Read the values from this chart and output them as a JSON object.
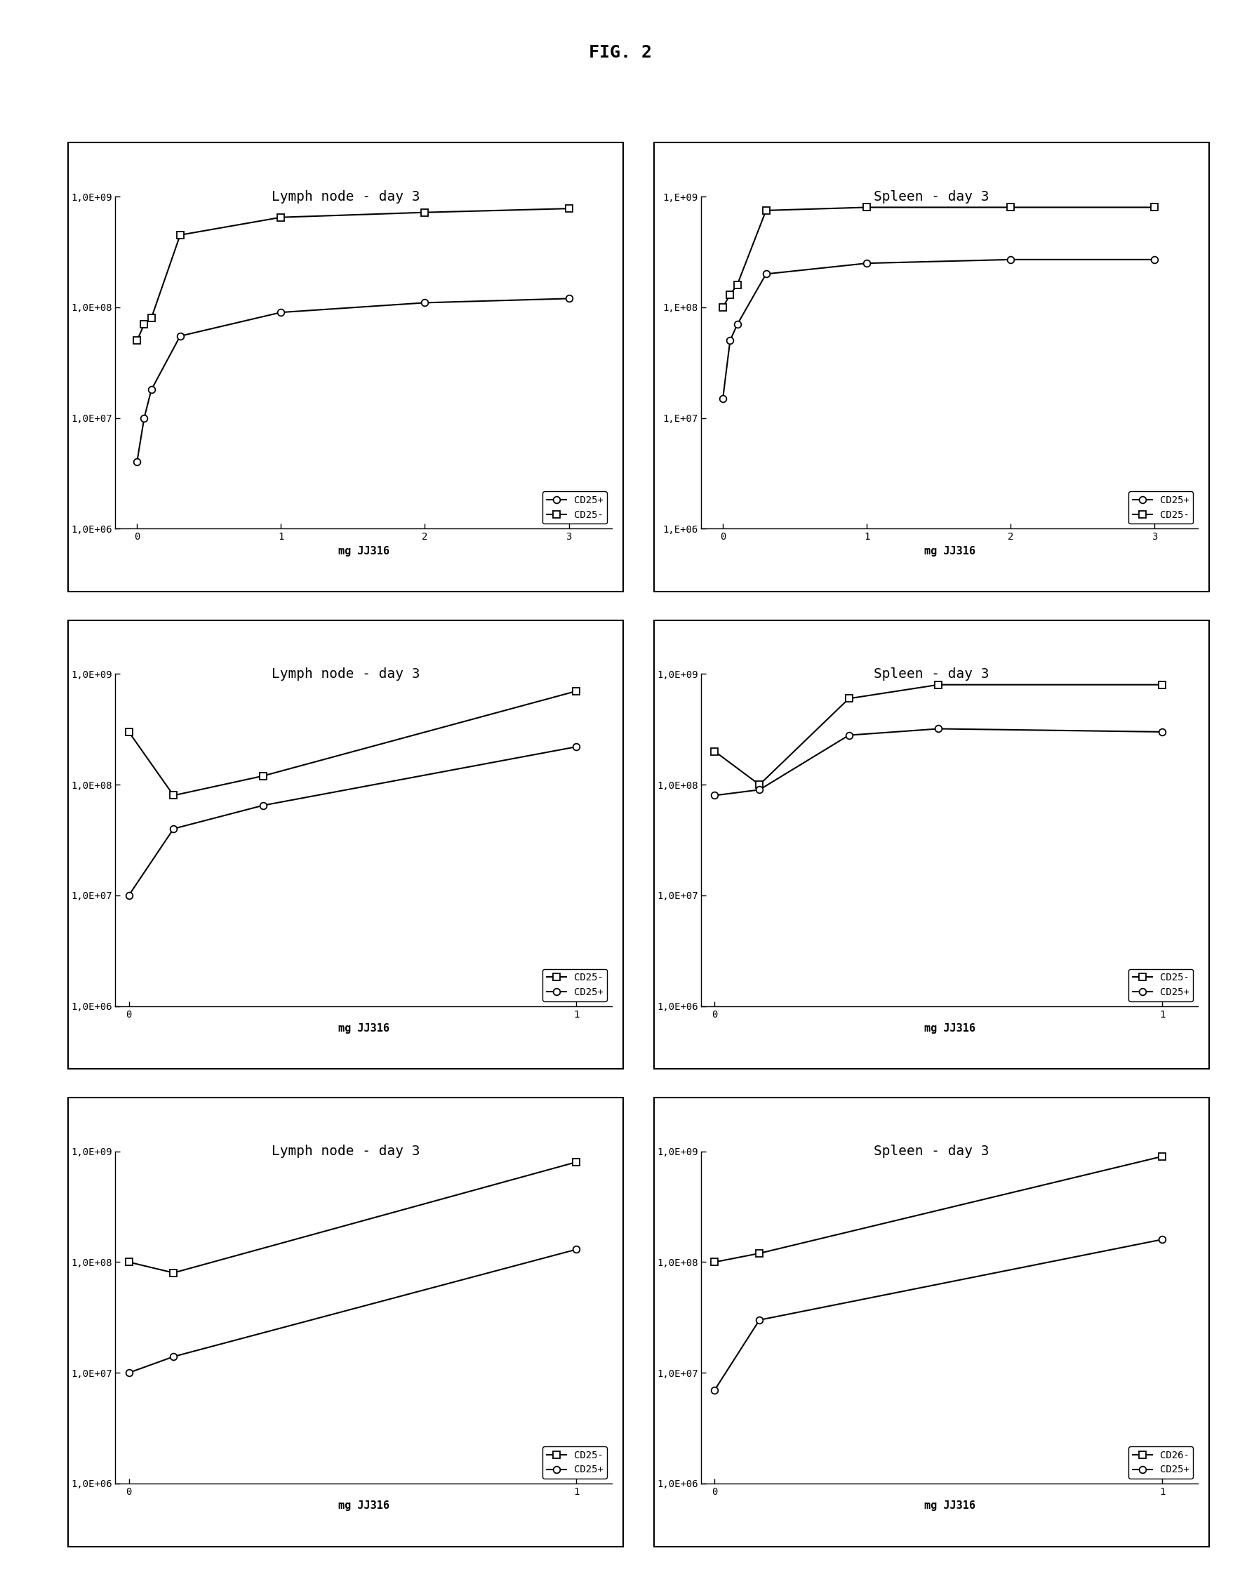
{
  "fig_title": "FIG. 2",
  "subplots": [
    {
      "title": "Lymph node - day 3",
      "xlabel": "mg JJ316",
      "ylim_log": [
        1000000.0,
        1000000000.0
      ],
      "xlim": [
        -0.15,
        3.3
      ],
      "xticks": [
        0,
        1,
        2,
        3
      ],
      "xtick_labels": [
        "0",
        "1",
        "2",
        "3"
      ],
      "ytick_vals": [
        1000000.0,
        10000000.0,
        100000000.0,
        1000000000.0
      ],
      "ytick_labels": [
        "1,0E+06",
        "1,0E+07",
        "1,0E+08",
        "1,0E+09"
      ],
      "series": [
        {
          "label": "CD25+",
          "marker": "o",
          "x": [
            0.0,
            0.05,
            0.1,
            0.3,
            1.0,
            2.0,
            3.0
          ],
          "y": [
            4000000.0,
            10000000.0,
            18000000.0,
            55000000.0,
            90000000.0,
            110000000.0,
            120000000.0
          ]
        },
        {
          "label": "CD25-",
          "marker": "s",
          "x": [
            0.0,
            0.05,
            0.1,
            0.3,
            1.0,
            2.0,
            3.0
          ],
          "y": [
            50000000.0,
            70000000.0,
            80000000.0,
            450000000.0,
            650000000.0,
            720000000.0,
            780000000.0
          ]
        }
      ],
      "legend_order": [
        0,
        1
      ]
    },
    {
      "title": "Spleen - day 3",
      "xlabel": "mg JJ316",
      "ylim_log": [
        1000000.0,
        1000000000.0
      ],
      "xlim": [
        -0.15,
        3.3
      ],
      "xticks": [
        0,
        1,
        2,
        3
      ],
      "xtick_labels": [
        "0",
        "1",
        "2",
        "3"
      ],
      "ytick_vals": [
        1000000.0,
        10000000.0,
        100000000.0,
        1000000000.0
      ],
      "ytick_labels": [
        "1,E+06",
        "1,E+07",
        "1,E+08",
        "1,E+09"
      ],
      "series": [
        {
          "label": "CD25+",
          "marker": "o",
          "x": [
            0.0,
            0.05,
            0.1,
            0.3,
            1.0,
            2.0,
            3.0
          ],
          "y": [
            15000000.0,
            50000000.0,
            70000000.0,
            200000000.0,
            250000000.0,
            270000000.0,
            270000000.0
          ]
        },
        {
          "label": "CD25-",
          "marker": "s",
          "x": [
            0.0,
            0.05,
            0.1,
            0.3,
            1.0,
            2.0,
            3.0
          ],
          "y": [
            100000000.0,
            130000000.0,
            160000000.0,
            750000000.0,
            800000000.0,
            800000000.0,
            800000000.0
          ]
        }
      ],
      "legend_order": [
        0,
        1
      ]
    },
    {
      "title": "Lymph node - day 3",
      "xlabel": "mg JJ316",
      "ylim_log": [
        1000000.0,
        1000000000.0
      ],
      "xlim": [
        -0.03,
        1.08
      ],
      "xticks": [
        0,
        1
      ],
      "xtick_labels": [
        "0",
        "1"
      ],
      "ytick_vals": [
        1000000.0,
        10000000.0,
        100000000.0,
        1000000000.0
      ],
      "ytick_labels": [
        "1,0E+06",
        "1,0E+07",
        "1,0E+08",
        "1,0E+09"
      ],
      "series": [
        {
          "label": "CD25-",
          "marker": "s",
          "x": [
            0.0,
            0.1,
            0.3,
            1.0
          ],
          "y": [
            300000000.0,
            80000000.0,
            120000000.0,
            700000000.0
          ]
        },
        {
          "label": "CD25+",
          "marker": "o",
          "x": [
            0.0,
            0.1,
            0.3,
            1.0
          ],
          "y": [
            10000000.0,
            40000000.0,
            65000000.0,
            220000000.0
          ]
        }
      ],
      "legend_order": [
        0,
        1
      ]
    },
    {
      "title": "Spleen - day 3",
      "xlabel": "mg JJ316",
      "ylim_log": [
        1000000.0,
        1000000000.0
      ],
      "xlim": [
        -0.03,
        1.08
      ],
      "xticks": [
        0,
        1
      ],
      "xtick_labels": [
        "0",
        "1"
      ],
      "ytick_vals": [
        1000000.0,
        10000000.0,
        100000000.0,
        1000000000.0
      ],
      "ytick_labels": [
        "1,0E+06",
        "1,0E+07",
        "1,0E+08",
        "1,0E+09"
      ],
      "series": [
        {
          "label": "CD25-",
          "marker": "s",
          "x": [
            0.0,
            0.1,
            0.3,
            0.5,
            1.0
          ],
          "y": [
            200000000.0,
            100000000.0,
            600000000.0,
            800000000.0,
            800000000.0
          ]
        },
        {
          "label": "CD25+",
          "marker": "o",
          "x": [
            0.0,
            0.1,
            0.3,
            0.5,
            1.0
          ],
          "y": [
            80000000.0,
            90000000.0,
            280000000.0,
            320000000.0,
            300000000.0
          ]
        }
      ],
      "legend_order": [
        0,
        1
      ]
    },
    {
      "title": "Lymph node - day 3",
      "xlabel": "mg JJ316",
      "ylim_log": [
        1000000.0,
        1000000000.0
      ],
      "xlim": [
        -0.03,
        1.08
      ],
      "xticks": [
        0,
        1
      ],
      "xtick_labels": [
        "0",
        "1"
      ],
      "ytick_vals": [
        1000000.0,
        10000000.0,
        100000000.0,
        1000000000.0
      ],
      "ytick_labels": [
        "1,0E+06",
        "1,0E+07",
        "1,0E+08",
        "1,0E+09"
      ],
      "series": [
        {
          "label": "CD25-",
          "marker": "s",
          "x": [
            0.0,
            0.1,
            1.0
          ],
          "y": [
            100000000.0,
            80000000.0,
            800000000.0
          ]
        },
        {
          "label": "CD25+",
          "marker": "o",
          "x": [
            0.0,
            0.1,
            1.0
          ],
          "y": [
            10000000.0,
            14000000.0,
            130000000.0
          ]
        }
      ],
      "legend_order": [
        0,
        1
      ]
    },
    {
      "title": "Spleen - day 3",
      "xlabel": "mg JJ316",
      "ylim_log": [
        1000000.0,
        1000000000.0
      ],
      "xlim": [
        -0.03,
        1.08
      ],
      "xticks": [
        0,
        1
      ],
      "xtick_labels": [
        "0",
        "1"
      ],
      "ytick_vals": [
        1000000.0,
        10000000.0,
        100000000.0,
        1000000000.0
      ],
      "ytick_labels": [
        "1,0E+06",
        "1,0E+07",
        "1,0E+08",
        "1,0E+09"
      ],
      "series": [
        {
          "label": "CD26-",
          "marker": "s",
          "x": [
            0.0,
            0.1,
            1.0
          ],
          "y": [
            100000000.0,
            120000000.0,
            900000000.0
          ]
        },
        {
          "label": "CD25+",
          "marker": "o",
          "x": [
            0.0,
            0.1,
            1.0
          ],
          "y": [
            7000000.0,
            30000000.0,
            160000000.0
          ]
        }
      ],
      "legend_order": [
        0,
        1
      ]
    }
  ],
  "line_color": "#000000",
  "marker_size": 7,
  "title_fontsize": 14,
  "tick_fontsize": 10,
  "label_fontsize": 11,
  "legend_fontsize": 10,
  "fig_bg": "#ffffff",
  "panel_bg": "#ffffff"
}
